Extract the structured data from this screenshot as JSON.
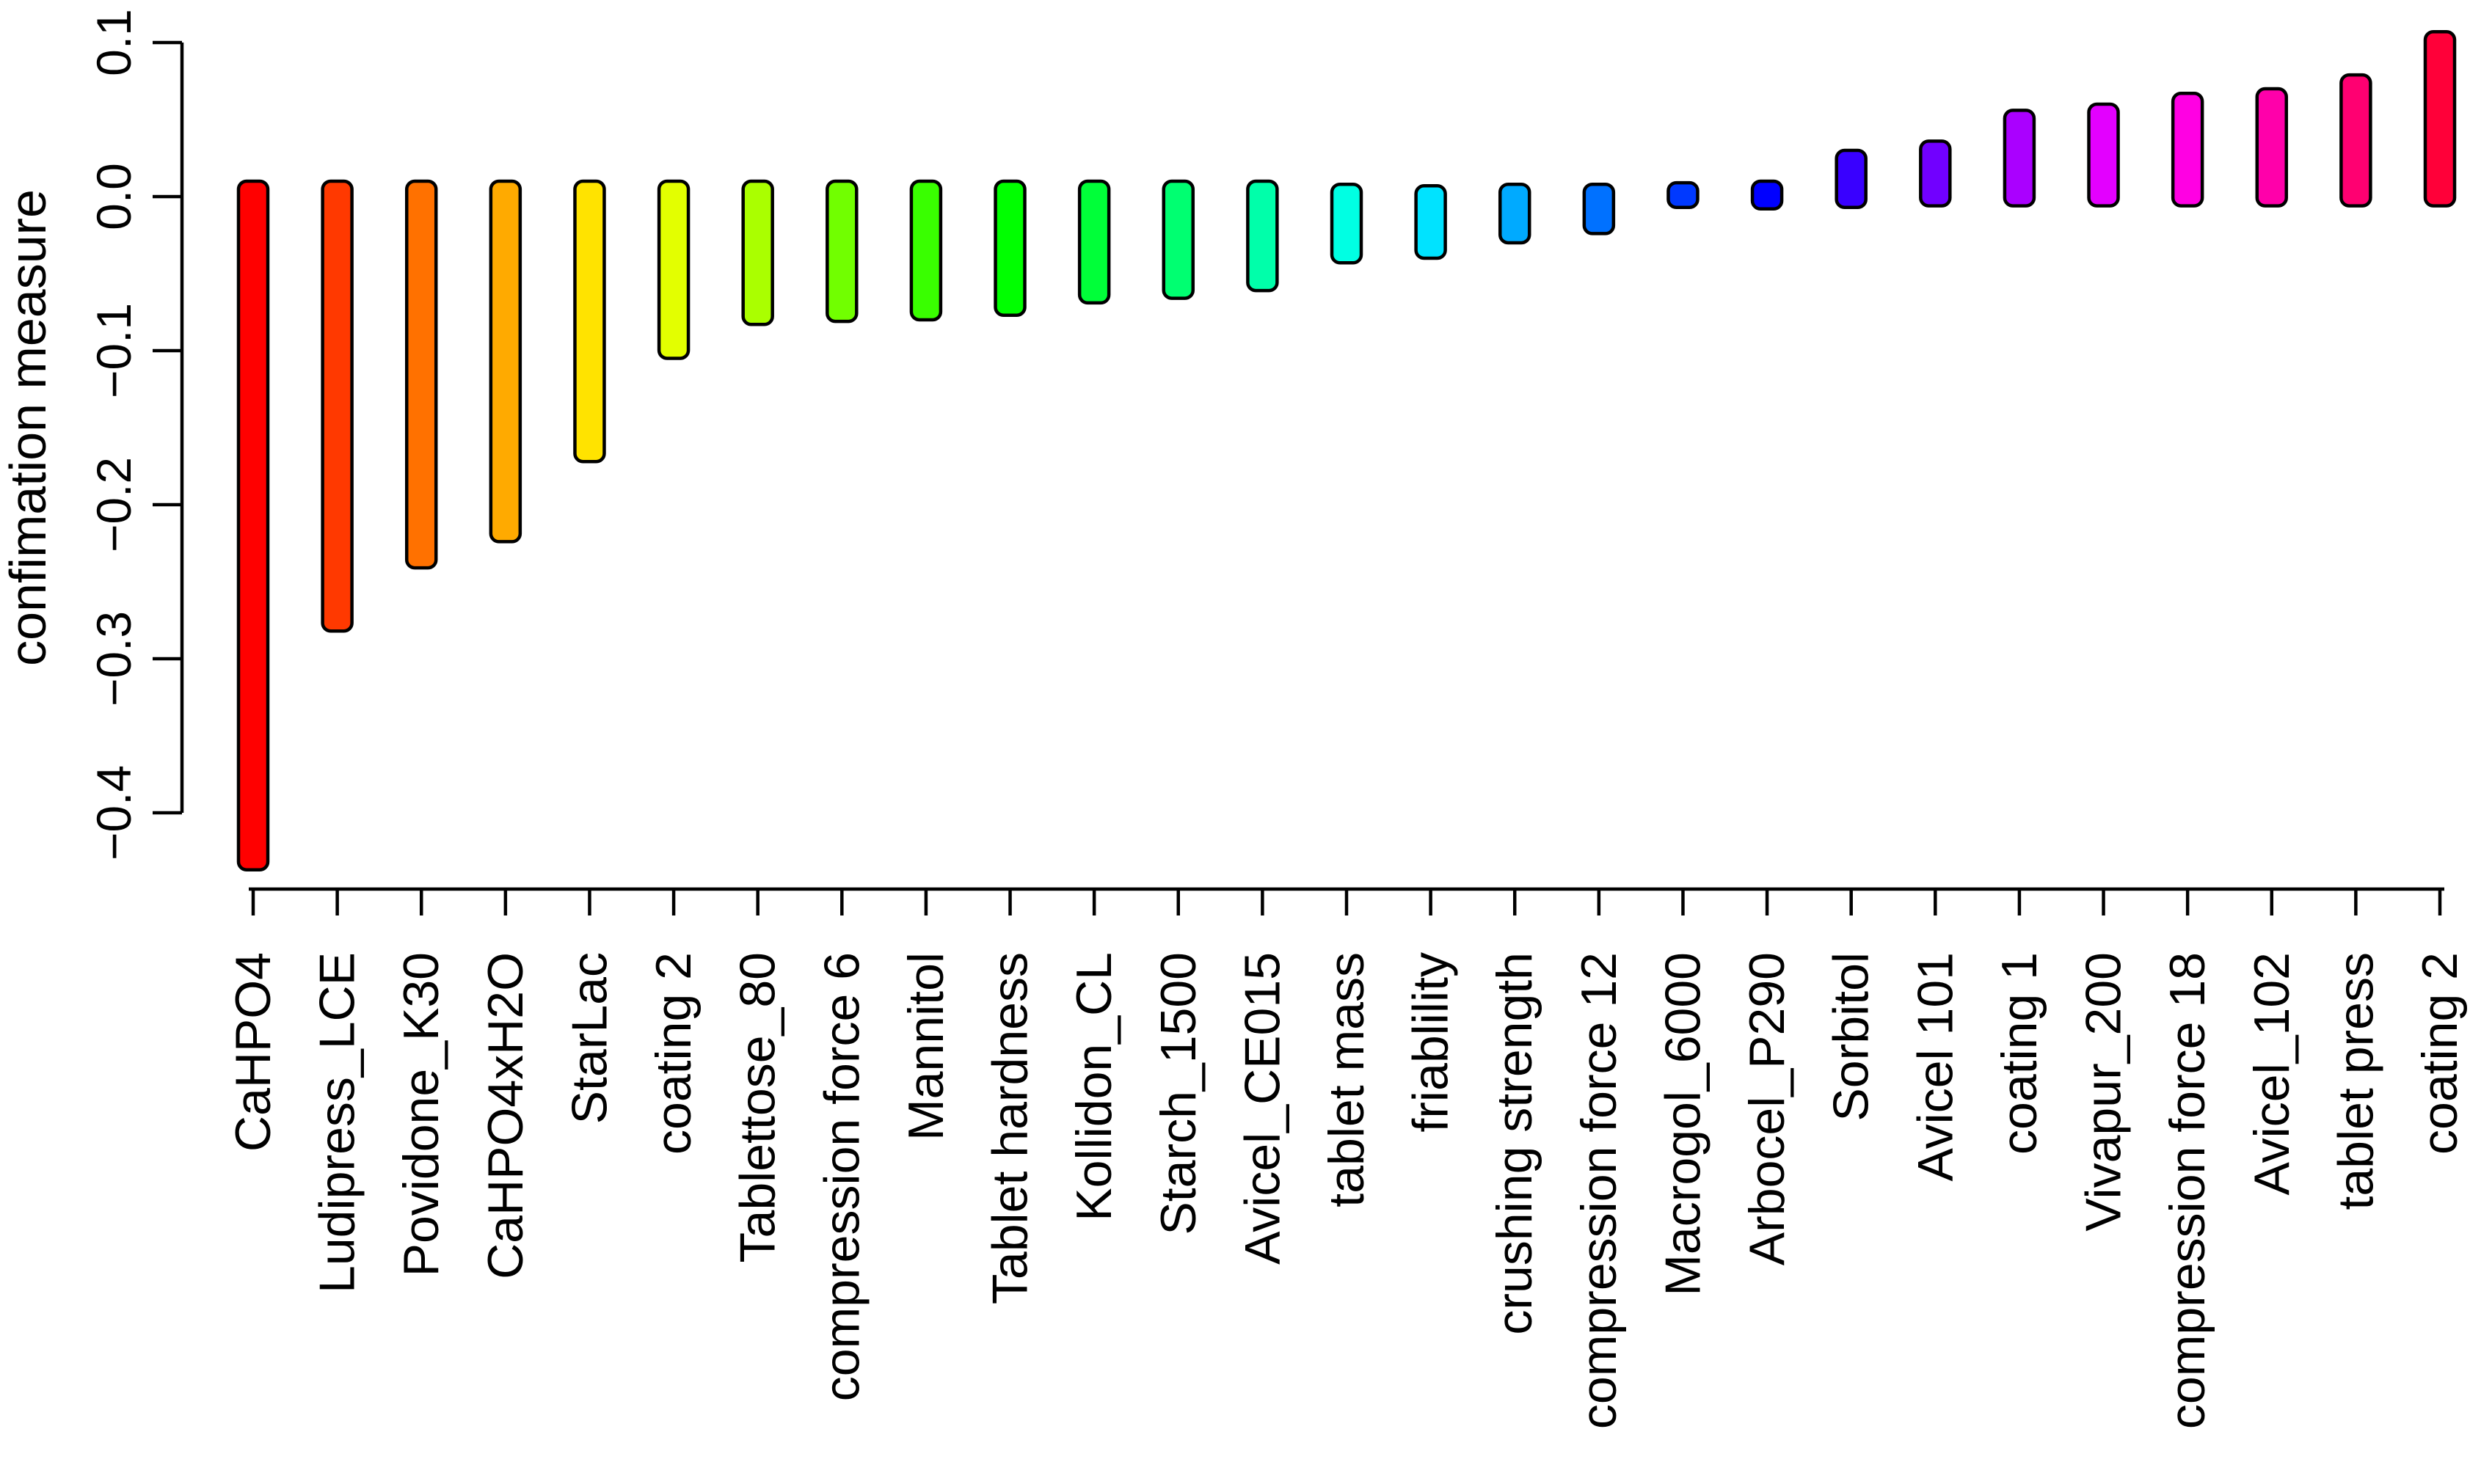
{
  "chart_data": {
    "type": "bar",
    "variant": "floating-rounded-bars",
    "title": "",
    "xlabel": "",
    "ylabel": "confimation measure",
    "background_color": "#ffffff",
    "axis_color": "#000000",
    "bar_outline_color": "#000000",
    "grid": false,
    "legend": false,
    "ylim": [
      -0.45,
      0.115
    ],
    "yticks": {
      "values": [
        0.1,
        0.0,
        -0.1,
        -0.2,
        -0.3,
        -0.4
      ],
      "labels": [
        "0.1",
        "0.0",
        "−0.1",
        "−0.2",
        "−0.3",
        "−0.4"
      ]
    },
    "categories": [
      "CaHPO4",
      "Ludipress_LCE",
      "Povidone_K30",
      "CaHPO4xH2O",
      "StarLac",
      "coating 2",
      "Tablettose_80",
      "compression force 6",
      "Mannitol",
      "Tablet hardness",
      "Kollidon_CL",
      "Starch_1500",
      "Avicel_CE015",
      "tablet mass",
      "friablility",
      "crushing strength",
      "compression force 12",
      "Macrogol_6000",
      "Arbocel_P290",
      "Sorbitol",
      "Avicel 101",
      "coating 1",
      "Vivapur_200",
      "compression force 18",
      "Avicel_102",
      "tablet press",
      "coating 2"
    ],
    "bars": [
      {
        "label": "CaHPO4",
        "top": 0.01,
        "bottom": -0.437,
        "color": "#FF0000"
      },
      {
        "label": "Ludipress_LCE",
        "top": 0.01,
        "bottom": -0.282,
        "color": "#FF3900"
      },
      {
        "label": "Povidone_K30",
        "top": 0.01,
        "bottom": -0.241,
        "color": "#FF7100"
      },
      {
        "label": "CaHPO4xH2O",
        "top": 0.01,
        "bottom": -0.224,
        "color": "#FFAA00"
      },
      {
        "label": "StarLac",
        "top": 0.01,
        "bottom": -0.172,
        "color": "#FFE300"
      },
      {
        "label": "coating 2",
        "top": 0.01,
        "bottom": -0.105,
        "color": "#E3FF00"
      },
      {
        "label": "Tablettose_80",
        "top": 0.01,
        "bottom": -0.083,
        "color": "#AAFF00"
      },
      {
        "label": "compression force 6",
        "top": 0.01,
        "bottom": -0.081,
        "color": "#71FF00"
      },
      {
        "label": "Mannitol",
        "top": 0.01,
        "bottom": -0.08,
        "color": "#39FF00"
      },
      {
        "label": "Tablet hardness",
        "top": 0.01,
        "bottom": -0.077,
        "color": "#00FF00"
      },
      {
        "label": "Kollidon_CL",
        "top": 0.01,
        "bottom": -0.069,
        "color": "#00FF39"
      },
      {
        "label": "Starch_1500",
        "top": 0.01,
        "bottom": -0.066,
        "color": "#00FF71"
      },
      {
        "label": "Avicel_CE015",
        "top": 0.01,
        "bottom": -0.061,
        "color": "#00FFAA"
      },
      {
        "label": "tablet mass",
        "top": 0.008,
        "bottom": -0.043,
        "color": "#00FFE3"
      },
      {
        "label": "friablility",
        "top": 0.007,
        "bottom": -0.04,
        "color": "#00E3FF"
      },
      {
        "label": "crushing strength",
        "top": 0.008,
        "bottom": -0.03,
        "color": "#00AAFF"
      },
      {
        "label": "compression force 12",
        "top": 0.008,
        "bottom": -0.024,
        "color": "#0071FF"
      },
      {
        "label": "Macrogol_6000",
        "top": 0.009,
        "bottom": -0.007,
        "color": "#0039FF"
      },
      {
        "label": "Arbocel_P290",
        "top": 0.01,
        "bottom": -0.008,
        "color": "#0000FF"
      },
      {
        "label": "Sorbitol",
        "top": 0.03,
        "bottom": -0.007,
        "color": "#3900FF"
      },
      {
        "label": "Avicel 101",
        "top": 0.036,
        "bottom": -0.006,
        "color": "#7100FF"
      },
      {
        "label": "coating 1",
        "top": 0.056,
        "bottom": -0.006,
        "color": "#AA00FF"
      },
      {
        "label": "Vivapur_200",
        "top": 0.06,
        "bottom": -0.006,
        "color": "#E300FF"
      },
      {
        "label": "compression force 18",
        "top": 0.067,
        "bottom": -0.006,
        "color": "#FF00E3"
      },
      {
        "label": "Avicel_102",
        "top": 0.07,
        "bottom": -0.006,
        "color": "#FF00AA"
      },
      {
        "label": "tablet press",
        "top": 0.079,
        "bottom": -0.006,
        "color": "#FF0071"
      },
      {
        "label": "coating 2",
        "top": 0.107,
        "bottom": -0.006,
        "color": "#FF0039"
      }
    ]
  }
}
